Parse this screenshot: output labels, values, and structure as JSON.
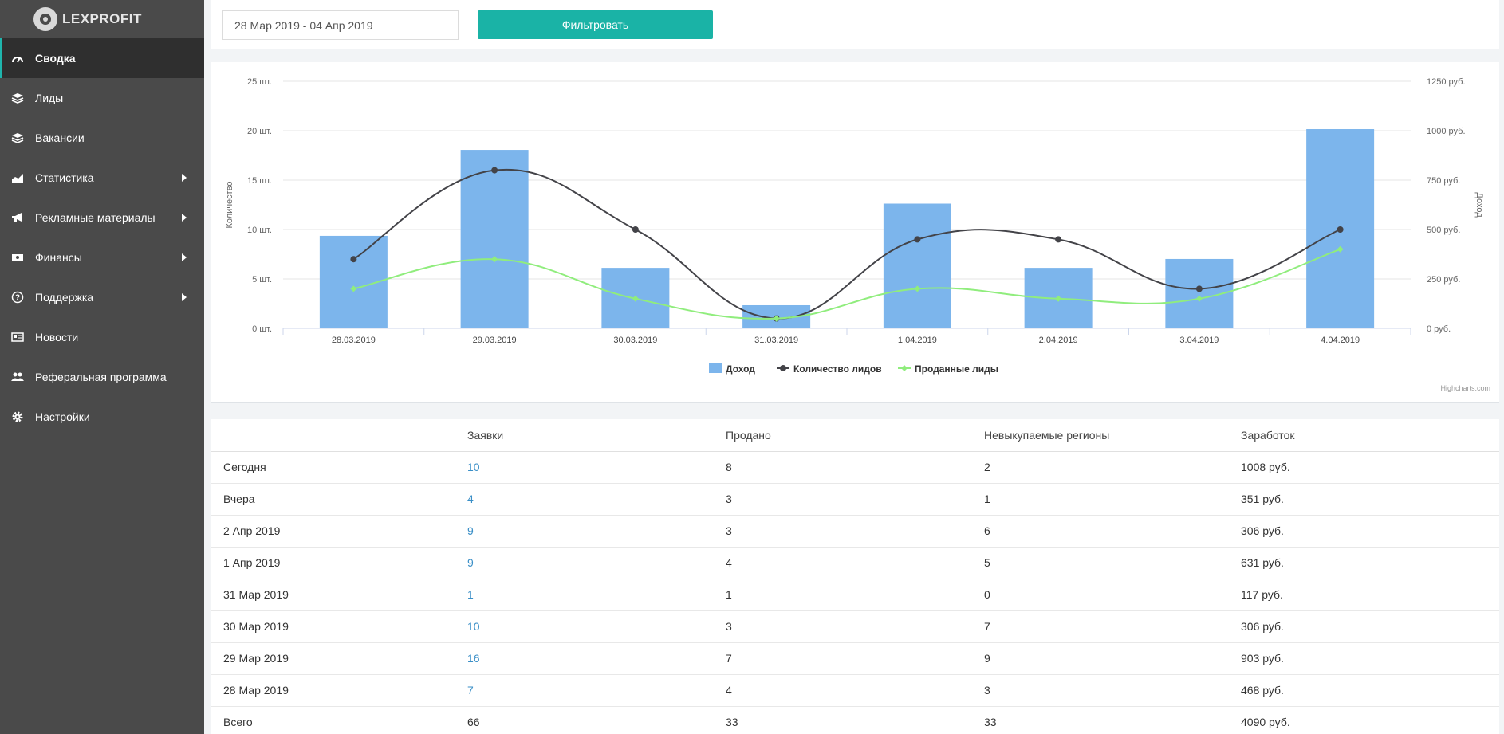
{
  "app": {
    "logo_text": "LEXPROFIT"
  },
  "sidebar": {
    "items": [
      {
        "label": "Сводка",
        "icon": "dashboard-icon",
        "active": true,
        "has_submenu": false
      },
      {
        "label": "Лиды",
        "icon": "layers-icon",
        "active": false,
        "has_submenu": false
      },
      {
        "label": "Вакансии",
        "icon": "layers-icon",
        "active": false,
        "has_submenu": false
      },
      {
        "label": "Статистика",
        "icon": "area-chart-icon",
        "active": false,
        "has_submenu": true
      },
      {
        "label": "Рекламные материалы",
        "icon": "bullhorn-icon",
        "active": false,
        "has_submenu": true
      },
      {
        "label": "Финансы",
        "icon": "money-icon",
        "active": false,
        "has_submenu": true
      },
      {
        "label": "Поддержка",
        "icon": "question-circle-icon",
        "active": false,
        "has_submenu": true
      },
      {
        "label": "Новости",
        "icon": "newspaper-icon",
        "active": false,
        "has_submenu": false
      },
      {
        "label": "Реферальная программа",
        "icon": "users-icon",
        "active": false,
        "has_submenu": false
      },
      {
        "label": "Настройки",
        "icon": "gear-icon",
        "active": false,
        "has_submenu": false
      }
    ]
  },
  "filter": {
    "date_range": "28 Мар 2019 - 04 Апр 2019",
    "button_label": "Фильтровать"
  },
  "colors": {
    "accent": "#1ab3a6",
    "bar": "#7cb5ec",
    "line_leads": "#434348",
    "line_sold": "#90ed7d",
    "link": "#3a8fc7"
  },
  "chart_data": {
    "type": "bar",
    "categories": [
      "28.03.2019",
      "29.03.2019",
      "30.03.2019",
      "31.03.2019",
      "1.04.2019",
      "2.04.2019",
      "3.04.2019",
      "4.04.2019"
    ],
    "series": [
      {
        "name": "Доход",
        "type": "bar",
        "axis": "right",
        "values": [
          468,
          903,
          306,
          117,
          631,
          306,
          351,
          1008
        ]
      },
      {
        "name": "Количество лидов",
        "type": "line",
        "axis": "left",
        "values": [
          7,
          16,
          10,
          1,
          9,
          9,
          4,
          10
        ]
      },
      {
        "name": "Проданные лиды",
        "type": "line",
        "axis": "left",
        "values": [
          4,
          7,
          3,
          1,
          4,
          3,
          3,
          8
        ]
      }
    ],
    "left_axis": {
      "title": "Количество",
      "ticks": [
        "0 шт.",
        "5 шт.",
        "10 шт.",
        "15 шт.",
        "20 шт.",
        "25 шт."
      ],
      "range": [
        0,
        25
      ]
    },
    "right_axis": {
      "title": "Доход",
      "ticks": [
        "0 руб.",
        "250 руб.",
        "500 руб.",
        "750 руб.",
        "1000 руб.",
        "1250 руб."
      ],
      "range": [
        0,
        1250
      ]
    },
    "grid": true,
    "legend_position": "bottom-center",
    "credits": "Highcharts.com"
  },
  "table": {
    "headers": [
      "",
      "Заявки",
      "Продано",
      "Невыкупаемые регионы",
      "Заработок"
    ],
    "rows": [
      [
        "Сегодня",
        "10",
        "8",
        "2",
        "1008 руб."
      ],
      [
        "Вчера",
        "4",
        "3",
        "1",
        "351 руб."
      ],
      [
        "2 Апр 2019",
        "9",
        "3",
        "6",
        "306 руб."
      ],
      [
        "1 Апр 2019",
        "9",
        "4",
        "5",
        "631 руб."
      ],
      [
        "31 Мар 2019",
        "1",
        "1",
        "0",
        "117 руб."
      ],
      [
        "30 Мар 2019",
        "10",
        "3",
        "7",
        "306 руб."
      ],
      [
        "29 Мар 2019",
        "16",
        "7",
        "9",
        "903 руб."
      ],
      [
        "28 Мар 2019",
        "7",
        "4",
        "3",
        "468 руб."
      ],
      [
        "Всего",
        "66",
        "33",
        "33",
        "4090 руб."
      ]
    ]
  }
}
